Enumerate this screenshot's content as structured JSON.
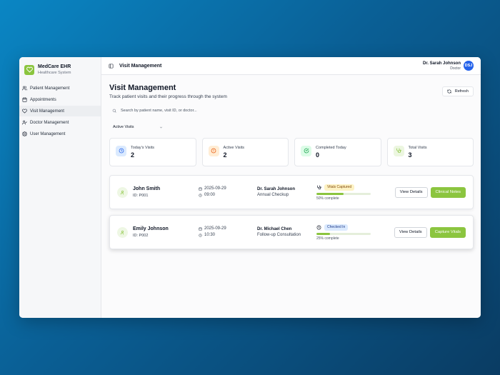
{
  "app": {
    "name": "MedCare EHR",
    "subtitle": "Healthcare System",
    "accent_color": "#8bc53f"
  },
  "sidebar": {
    "items": [
      {
        "label": "Patient Management",
        "icon": "users-icon",
        "active": false
      },
      {
        "label": "Appointments",
        "icon": "calendar-icon",
        "active": false
      },
      {
        "label": "Visit Management",
        "icon": "heart-icon",
        "active": true
      },
      {
        "label": "Doctor Management",
        "icon": "user-check-icon",
        "active": false
      },
      {
        "label": "User Management",
        "icon": "gear-icon",
        "active": false
      }
    ]
  },
  "topbar": {
    "title": "Visit Management",
    "user_name": "Dr. Sarah Johnson",
    "user_role": "Doctor",
    "user_initials": "DSJ"
  },
  "page": {
    "title": "Visit Management",
    "subtitle": "Track patient visits and their progress through the system",
    "refresh_label": "Refresh",
    "search_placeholder": "Search by patient name, visit ID, or doctor...",
    "filter_value": "Active Visits"
  },
  "stats": [
    {
      "label": "Today's Visits",
      "value": "2",
      "icon": "clock-icon",
      "color": "#3b82f6"
    },
    {
      "label": "Active Visits",
      "value": "2",
      "icon": "alert-circle-icon",
      "color": "#ea580c"
    },
    {
      "label": "Completed Today",
      "value": "0",
      "icon": "check-circle-icon",
      "color": "#16a34a"
    },
    {
      "label": "Total Visits",
      "value": "3",
      "icon": "stethoscope-icon",
      "color": "#8bc53f"
    }
  ],
  "visits": [
    {
      "patient_name": "John Smith",
      "patient_id": "ID: P001",
      "date": "2025-09-29",
      "time": "09:00",
      "doctor": "Dr. Sarah Johnson",
      "visit_type": "Annual Checkup",
      "status": "Vitals Captured",
      "status_icon": "stethoscope-icon",
      "progress": 50,
      "progress_text": "50% complete",
      "details_label": "View Details",
      "action_label": "Clinical Notes"
    },
    {
      "patient_name": "Emily Johnson",
      "patient_id": "ID: P002",
      "date": "2025-09-29",
      "time": "10:30",
      "doctor": "Dr. Michael Chen",
      "visit_type": "Follow-up Consultation",
      "status": "Checked In",
      "status_icon": "clock-icon",
      "progress": 25,
      "progress_text": "25% complete",
      "details_label": "View Details",
      "action_label": "Capture Vitals"
    }
  ]
}
